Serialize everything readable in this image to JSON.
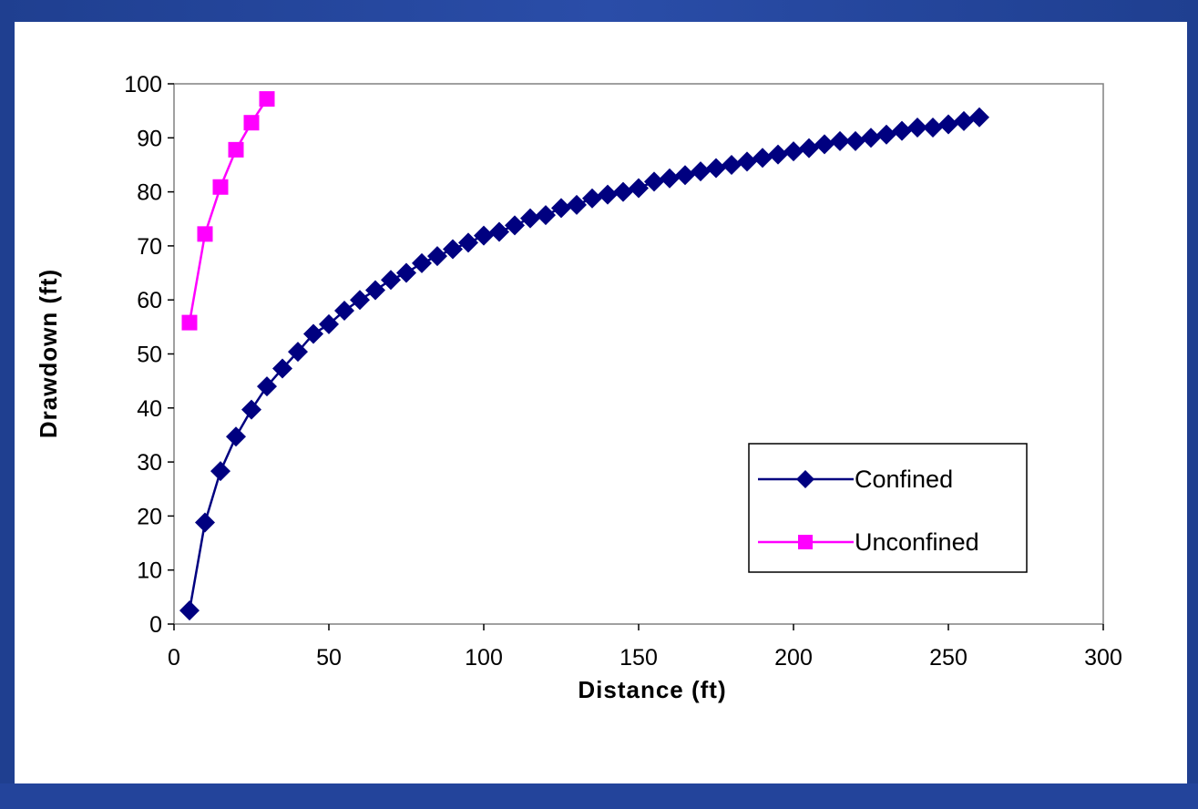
{
  "chart_data": {
    "type": "line",
    "title": "",
    "xlabel": "Distance (ft)",
    "ylabel": "Drawdown (ft)",
    "xlim": [
      0,
      300
    ],
    "ylim": [
      0,
      100
    ],
    "x_ticks": [
      "0",
      "50",
      "100",
      "150",
      "200",
      "250",
      "300"
    ],
    "y_ticks": [
      "0",
      "10",
      "20",
      "30",
      "40",
      "50",
      "60",
      "70",
      "80",
      "90",
      "100"
    ],
    "grid": false,
    "legend_position": "bottom-right",
    "series": [
      {
        "name": "Confined",
        "color": "#000080",
        "marker": "diamond",
        "x": [
          5,
          10,
          15,
          20,
          25,
          30,
          35,
          40,
          45,
          50,
          55,
          60,
          65,
          70,
          75,
          80,
          85,
          90,
          95,
          100,
          105,
          110,
          115,
          120,
          125,
          130,
          135,
          140,
          145,
          150,
          155,
          160,
          165,
          170,
          175,
          180,
          185,
          190,
          195,
          200,
          205,
          210,
          215,
          220,
          225,
          230,
          235,
          240,
          245,
          250,
          255,
          260
        ],
        "y": [
          2.5,
          18.8,
          28.3,
          34.7,
          39.7,
          44.0,
          47.3,
          50.4,
          53.7,
          55.5,
          58.0,
          60.0,
          61.8,
          63.7,
          65.0,
          66.8,
          68.1,
          69.4,
          70.6,
          71.9,
          72.6,
          73.8,
          75.1,
          75.7,
          77.0,
          77.6,
          78.8,
          79.5,
          80.0,
          80.7,
          81.9,
          82.5,
          83.1,
          83.8,
          84.4,
          85.0,
          85.6,
          86.3,
          86.9,
          87.5,
          88.1,
          88.8,
          89.4,
          89.4,
          90.0,
          90.6,
          91.3,
          91.9,
          91.9,
          92.5,
          93.1,
          93.8
        ]
      },
      {
        "name": "Unconfined",
        "color": "#FF00FF",
        "marker": "square",
        "x": [
          5,
          10,
          15,
          20,
          25,
          30
        ],
        "y": [
          55.8,
          72.2,
          80.9,
          87.8,
          92.8,
          97.2
        ]
      }
    ]
  }
}
